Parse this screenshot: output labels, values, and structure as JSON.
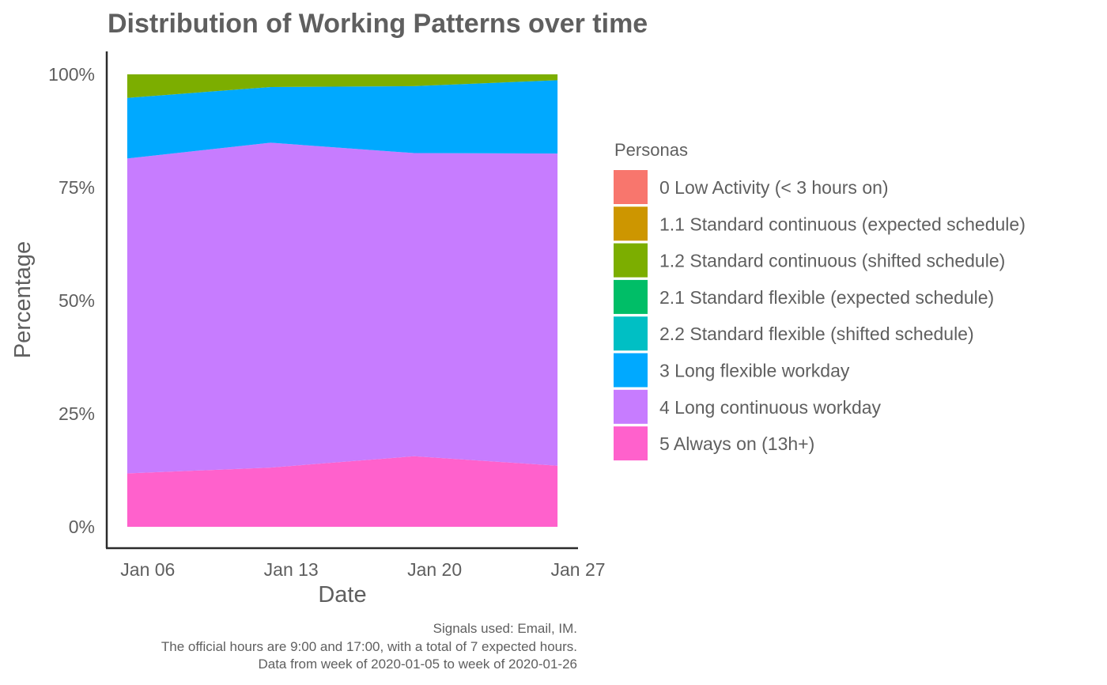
{
  "chart_data": {
    "type": "area",
    "stacked": true,
    "title": "Distribution of Working Patterns over time",
    "xlabel": "Date",
    "ylabel": "Percentage",
    "x": [
      "2020-01-05",
      "2020-01-12",
      "2020-01-19",
      "2020-01-26"
    ],
    "x_ticks": [
      {
        "date": "2020-01-06",
        "label": "Jan 06"
      },
      {
        "date": "2020-01-13",
        "label": "Jan 13"
      },
      {
        "date": "2020-01-20",
        "label": "Jan 20"
      },
      {
        "date": "2020-01-27",
        "label": "Jan 27"
      }
    ],
    "x_range": [
      "2020-01-04",
      "2020-01-27"
    ],
    "y_ticks": [
      {
        "value": 0,
        "label": "0%"
      },
      {
        "value": 25,
        "label": "25%"
      },
      {
        "value": 50,
        "label": "50%"
      },
      {
        "value": 75,
        "label": "75%"
      },
      {
        "value": 100,
        "label": "100%"
      }
    ],
    "ylim": [
      0,
      100
    ],
    "grid": false,
    "legend": {
      "title": "Personas",
      "position": "right",
      "entries": [
        {
          "label": "0 Low Activity (< 3 hours on)",
          "color": "#F8766D"
        },
        {
          "label": "1.1 Standard continuous (expected schedule)",
          "color": "#CD9600"
        },
        {
          "label": "1.2 Standard continuous (shifted schedule)",
          "color": "#7CAE00"
        },
        {
          "label": "2.1 Standard flexible (expected schedule)",
          "color": "#00BE67"
        },
        {
          "label": "2.2 Standard flexible (shifted schedule)",
          "color": "#00BFC4"
        },
        {
          "label": "3 Long flexible workday",
          "color": "#00A9FF"
        },
        {
          "label": "4 Long continuous workday",
          "color": "#C77CFF"
        },
        {
          "label": "5 Always on (13h+)",
          "color": "#FF61CC"
        }
      ]
    },
    "series": [
      {
        "name": "5 Always on (13h+)",
        "color": "#FF61CC",
        "values": [
          11.8,
          13.1,
          15.6,
          13.5
        ]
      },
      {
        "name": "4 Long continuous workday",
        "color": "#C77CFF",
        "values": [
          69.6,
          71.8,
          67.0,
          69.0
        ]
      },
      {
        "name": "3 Long flexible workday",
        "color": "#00A9FF",
        "values": [
          13.4,
          12.3,
          14.8,
          16.2
        ]
      },
      {
        "name": "1.2 Standard continuous (shifted schedule)",
        "color": "#7CAE00",
        "values": [
          5.2,
          2.8,
          2.6,
          1.3
        ]
      }
    ],
    "caption": [
      "Signals used: Email, IM.",
      "The official hours are 9:00 and 17:00, with a total of 7 expected hours.",
      "Data from week of 2020-01-05 to week of 2020-01-26"
    ]
  }
}
